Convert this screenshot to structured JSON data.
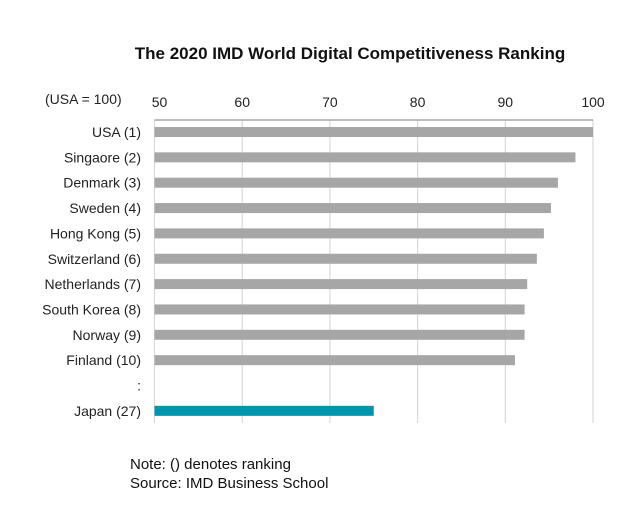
{
  "chart_data": {
    "type": "bar",
    "orientation": "horizontal",
    "title": "The 2020 IMD World Digital Competitiveness Ranking",
    "unit_label": "(USA = 100)",
    "xlabel": "",
    "ylabel": "",
    "xlim": [
      50,
      100
    ],
    "xticks": [
      50,
      60,
      70,
      80,
      90,
      100
    ],
    "xtick_labels": [
      "50",
      "60",
      "70",
      "80",
      "90",
      "100"
    ],
    "xaxis_position": "top",
    "grid": true,
    "categories": [
      "USA (1)",
      "Singaore (2)",
      "Denmark (3)",
      "Sweden (4)",
      "Hong Kong (5)",
      "Switzerland (6)",
      "Netherlands (7)",
      "South Korea (8)",
      "Norway (9)",
      "Finland (10)",
      ":",
      "Japan (27)"
    ],
    "values": [
      100,
      98.0,
      96.0,
      95.2,
      94.4,
      93.6,
      92.5,
      92.2,
      92.2,
      91.1,
      null,
      75.0
    ],
    "highlight": [
      "Japan (27)"
    ],
    "colors": {
      "default_bar": "#a6a6a6",
      "highlight_bar": "#0095ad",
      "grid": "#d9d9d9",
      "axis": "#a6a6a6"
    }
  },
  "notes": {
    "note": "Note: () denotes ranking",
    "source": "Source: IMD Business School"
  }
}
